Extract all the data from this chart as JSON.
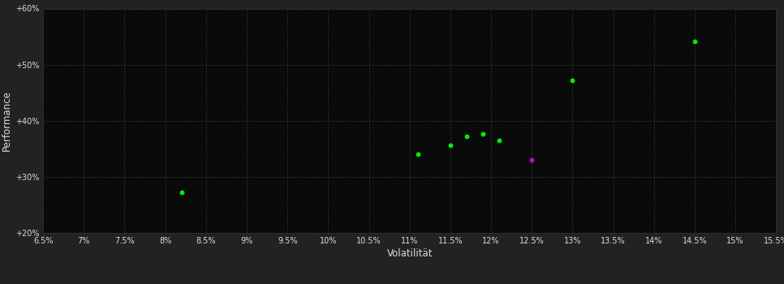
{
  "background_color": "#222222",
  "plot_bg_color": "#0a0a0a",
  "grid_color": "#333333",
  "grid_style": "--",
  "xlabel": "Volatilität",
  "ylabel": "Performance",
  "xlim": [
    0.065,
    0.155
  ],
  "ylim": [
    0.2,
    0.6
  ],
  "xticks": [
    0.065,
    0.07,
    0.075,
    0.08,
    0.085,
    0.09,
    0.095,
    0.1,
    0.105,
    0.11,
    0.115,
    0.12,
    0.125,
    0.13,
    0.135,
    0.14,
    0.145,
    0.15,
    0.155
  ],
  "yticks": [
    0.2,
    0.3,
    0.4,
    0.5,
    0.6
  ],
  "ytick_labels": [
    "+20%",
    "+30%",
    "+40%",
    "+50%",
    "+60%"
  ],
  "green_points": [
    [
      0.082,
      0.272
    ],
    [
      0.111,
      0.34
    ],
    [
      0.115,
      0.356
    ],
    [
      0.117,
      0.372
    ],
    [
      0.119,
      0.376
    ],
    [
      0.121,
      0.365
    ],
    [
      0.13,
      0.472
    ],
    [
      0.145,
      0.542
    ]
  ],
  "magenta_points": [
    [
      0.125,
      0.33
    ]
  ],
  "green_color": "#00ee00",
  "magenta_color": "#cc00cc",
  "dot_size": 18,
  "text_color": "#dddddd",
  "tick_fontsize": 7,
  "label_fontsize": 8.5
}
